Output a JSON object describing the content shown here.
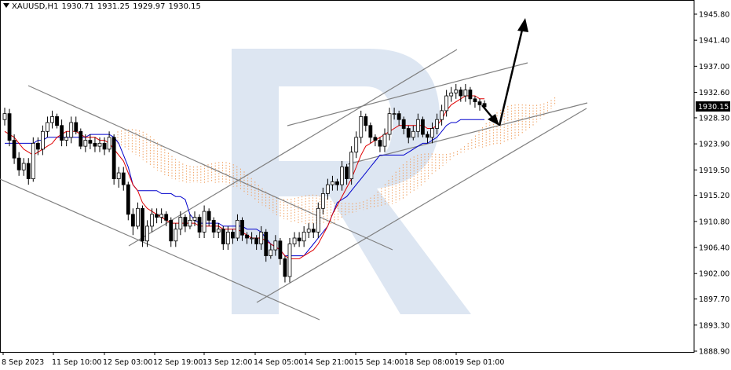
{
  "header": {
    "symbol": "XAUUSD,H1",
    "open": "1930.71",
    "high": "1931.25",
    "low": "1929.97",
    "close": "1930.15"
  },
  "price_label": "1930.15",
  "colors": {
    "bull_body": "#ffffff",
    "bear_body": "#000000",
    "wick": "#000000",
    "tenkan": "#e00000",
    "kijun": "#0000cc",
    "cloud_bull": "#f0a060",
    "cloud_bear": "#c8a0d8",
    "trendline": "#808080",
    "arrow": "#000000",
    "watermark": "#dde6f2"
  },
  "chart_data": {
    "type": "candlestick",
    "symbol": "XAUUSD",
    "timeframe": "H1",
    "y_ticks": [
      "1945.80",
      "1941.40",
      "1937.00",
      "1932.60",
      "1928.30",
      "1923.90",
      "1919.50",
      "1915.20",
      "1910.80",
      "1906.40",
      "1902.00",
      "1897.70",
      "1893.30",
      "1888.90"
    ],
    "ylim": [
      1888.9,
      1947.5
    ],
    "x_ticks": [
      "8 Sep 2023",
      "11 Sep 10:00",
      "12 Sep 03:00",
      "12 Sep 19:00",
      "13 Sep 12:00",
      "14 Sep 05:00",
      "14 Sep 21:00",
      "15 Sep 14:00",
      "18 Sep 08:00",
      "19 Sep 01:00"
    ],
    "close": [
      1929,
      1924.5,
      1921.5,
      1919.5,
      1920.6,
      1918,
      1924,
      1923,
      1926,
      1927.5,
      1928.5,
      1927,
      1924.5,
      1925,
      1927.5,
      1926,
      1923.5,
      1924.5,
      1924,
      1923.5,
      1924,
      1923,
      1925,
      1918,
      1919,
      1917,
      1912,
      1910,
      1913,
      1907.5,
      1910,
      1912,
      1911.5,
      1912,
      1911,
      1907.5,
      1909.5,
      1911.5,
      1910,
      1911,
      1911.5,
      1909,
      1912.5,
      1911,
      1909,
      1909.5,
      1907,
      1909,
      1908,
      1911,
      1908.5,
      1908,
      1908,
      1907,
      1909,
      1905,
      1906,
      1907.5,
      1904.5,
      1901.5,
      1907,
      1908,
      1907.5,
      1909,
      1909.5,
      1909,
      1913,
      1915.5,
      1917,
      1917.5,
      1917,
      1920,
      1918,
      1922.5,
      1925,
      1928.5,
      1927,
      1925,
      1924.5,
      1923.5,
      1925.5,
      1929,
      1929,
      1928,
      1926.5,
      1925,
      1926,
      1928,
      1925.5,
      1925,
      1926.5,
      1928,
      1929.5,
      1932,
      1932.5,
      1933,
      1932,
      1933,
      1931.5,
      1931,
      1930.5,
      1930.15
    ],
    "open": [
      1928,
      1929,
      1924.5,
      1921.5,
      1919.5,
      1920.6,
      1918,
      1924,
      1923,
      1926,
      1927.5,
      1928.5,
      1927,
      1924.5,
      1925,
      1927.5,
      1926,
      1923.5,
      1924.5,
      1924,
      1923.5,
      1924,
      1923,
      1925,
      1918,
      1919,
      1917,
      1912,
      1910,
      1913,
      1907.5,
      1910,
      1912,
      1911.5,
      1912,
      1911,
      1907.5,
      1909.5,
      1911.5,
      1910,
      1911,
      1911.5,
      1909,
      1912.5,
      1911,
      1909,
      1909.5,
      1907,
      1909,
      1908,
      1911,
      1908.5,
      1908,
      1908,
      1907,
      1909,
      1905,
      1906,
      1907.5,
      1904.5,
      1901.5,
      1907,
      1908,
      1907.5,
      1909,
      1909.5,
      1909,
      1913,
      1915.5,
      1917,
      1917.5,
      1917,
      1920,
      1918,
      1922.5,
      1925,
      1928.5,
      1927,
      1925,
      1924.5,
      1923.5,
      1925.5,
      1929,
      1929,
      1928,
      1926.5,
      1925,
      1926,
      1928,
      1925.5,
      1925,
      1926.5,
      1928,
      1929.5,
      1932,
      1932.5,
      1933,
      1932,
      1933,
      1931.5,
      1931,
      1930.71
    ],
    "high": [
      1930,
      1929.8,
      1925.5,
      1922.5,
      1921.5,
      1921.5,
      1925,
      1925,
      1927,
      1928.5,
      1929.5,
      1929,
      1928,
      1926,
      1928.5,
      1928.5,
      1926.5,
      1925.5,
      1925.5,
      1925,
      1925,
      1925,
      1926,
      1925.5,
      1920,
      1920,
      1917.5,
      1913,
      1914,
      1913.5,
      1911,
      1913,
      1913,
      1913,
      1912.5,
      1911.5,
      1910.5,
      1912.5,
      1912,
      1912,
      1912.5,
      1912,
      1913.5,
      1913,
      1911.5,
      1910.5,
      1910,
      1910,
      1909.5,
      1912,
      1911.5,
      1909,
      1909,
      1908.5,
      1910,
      1909.5,
      1907,
      1908.5,
      1908,
      1905,
      1908,
      1909,
      1909,
      1910,
      1910.5,
      1910.5,
      1914,
      1916.5,
      1918,
      1918.5,
      1918,
      1921,
      1920.5,
      1923.5,
      1926,
      1929.5,
      1929,
      1927.5,
      1925.5,
      1925,
      1926.5,
      1930,
      1930,
      1929.5,
      1928.5,
      1927,
      1927,
      1929,
      1928.5,
      1926,
      1927.5,
      1929,
      1930.5,
      1933,
      1933.5,
      1934,
      1933.5,
      1934,
      1933.5,
      1932,
      1931.5,
      1931.25
    ],
    "low": [
      1927,
      1923.5,
      1920.5,
      1918.5,
      1918.5,
      1917,
      1917.5,
      1922,
      1922,
      1925,
      1926.5,
      1926.5,
      1923.5,
      1923.5,
      1924,
      1925.5,
      1923,
      1922.5,
      1923,
      1922.5,
      1922.5,
      1922,
      1922.5,
      1917,
      1916.5,
      1916,
      1911,
      1908.5,
      1909.5,
      1906.5,
      1906.5,
      1909,
      1910.5,
      1910.5,
      1910,
      1906.5,
      1906.5,
      1908.5,
      1909,
      1909.5,
      1910,
      1908,
      1908,
      1910,
      1908,
      1908,
      1906,
      1906,
      1907,
      1907.5,
      1907.5,
      1907,
      1907,
      1906,
      1906,
      1904,
      1904.5,
      1905,
      1903.5,
      1900.5,
      1900.5,
      1906.5,
      1906.5,
      1906.5,
      1908,
      1908,
      1908,
      1912,
      1914.5,
      1916,
      1916,
      1916,
      1917,
      1917,
      1921.5,
      1924,
      1926,
      1924,
      1923.5,
      1922.5,
      1922.5,
      1924.5,
      1928,
      1927,
      1925.5,
      1924,
      1924.5,
      1925,
      1925,
      1924,
      1924,
      1925.5,
      1927,
      1928.5,
      1931,
      1931.5,
      1931,
      1931,
      1930.5,
      1930,
      1929.5,
      1929.97
    ],
    "tenkan": [
      1926,
      1925.5,
      1925,
      1924,
      1923,
      1922.5,
      1922,
      1922.5,
      1923,
      1923.5,
      1924,
      1925,
      1925.5,
      1926,
      1926,
      1926,
      1925.5,
      1925,
      1925,
      1925,
      1924.5,
      1924.5,
      1924,
      1923,
      1922,
      1921,
      1919,
      1917,
      1916,
      1914,
      1913,
      1912.5,
      1912,
      1911.5,
      1911,
      1910.5,
      1910.5,
      1910.5,
      1910.5,
      1910.5,
      1910.5,
      1910,
      1910,
      1910,
      1910,
      1910,
      1909.5,
      1909.5,
      1909.5,
      1909.5,
      1909,
      1908.5,
      1908,
      1908,
      1908,
      1907.5,
      1907,
      1906.5,
      1906,
      1905,
      1904.5,
      1904.5,
      1904.5,
      1905,
      1905.5,
      1906,
      1907,
      1908.5,
      1910,
      1912,
      1913.5,
      1915,
      1916.5,
      1918,
      1920,
      1922,
      1923.5,
      1924,
      1924.5,
      1925,
      1925.5,
      1926,
      1926.5,
      1927,
      1927,
      1927,
      1927,
      1927,
      1927,
      1926.5,
      1926.5,
      1927,
      1928,
      1929.5,
      1930.5,
      1931,
      1931.5,
      1932,
      1932,
      1932,
      1931.5,
      1931.5
    ],
    "kijun": [
      1924,
      1924,
      1924,
      1924,
      1924,
      1924,
      1924,
      1924.5,
      1924.5,
      1925,
      1925,
      1925,
      1925,
      1925,
      1925,
      1925,
      1925,
      1925,
      1925.5,
      1925.5,
      1925.5,
      1925.5,
      1925.5,
      1925,
      1924,
      1922,
      1920,
      1917,
      1916,
      1916,
      1916,
      1916,
      1916,
      1915.5,
      1915.5,
      1915.5,
      1915,
      1915,
      1914.5,
      1912,
      1911,
      1910.5,
      1910.5,
      1910.5,
      1910.5,
      1910.5,
      1910,
      1910,
      1910,
      1910,
      1910,
      1909.5,
      1909.5,
      1909.5,
      1909,
      1908,
      1907,
      1906.5,
      1906,
      1905,
      1905,
      1905,
      1905,
      1905,
      1906,
      1907,
      1908,
      1909,
      1910,
      1912,
      1914,
      1914.5,
      1915,
      1916,
      1917,
      1918,
      1919,
      1920,
      1921,
      1922,
      1922,
      1922,
      1922,
      1922,
      1922,
      1922.5,
      1923,
      1923.5,
      1924,
      1924,
      1924.5,
      1925,
      1926,
      1927,
      1927.5,
      1927.5,
      1928,
      1928,
      1928,
      1928,
      1928,
      1928
    ]
  }
}
